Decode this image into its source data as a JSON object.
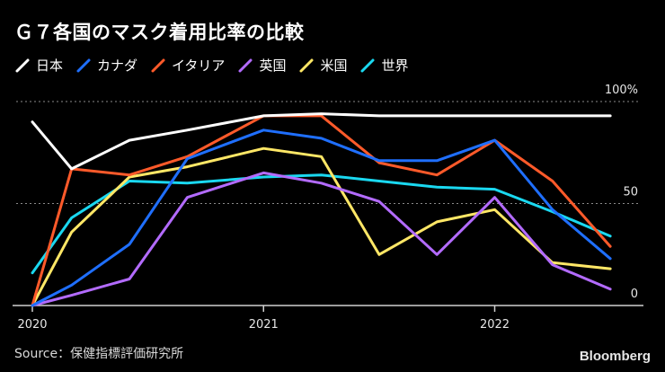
{
  "title": "Ｇ７各国のマスク着用比率の比較",
  "source": "Source：保健指標評価研究所",
  "brand": "Bloomberg",
  "chart_data": {
    "type": "line",
    "title": "Ｇ７各国のマスク着用比率の比較",
    "xlabel": "",
    "ylabel": "",
    "xlim": [
      2020.0,
      2022.62
    ],
    "ylim": [
      0,
      100
    ],
    "yticks": [
      {
        "value": 100,
        "label": "100%"
      },
      {
        "value": 50,
        "label": "50"
      },
      {
        "value": 0,
        "label": "0"
      }
    ],
    "xticks": [
      {
        "value": 2020,
        "label": "2020"
      },
      {
        "value": 2021,
        "label": "2021"
      },
      {
        "value": 2022,
        "label": "2022"
      }
    ],
    "x": [
      2020.0,
      2020.17,
      2020.42,
      2020.67,
      2021.0,
      2021.25,
      2021.5,
      2021.75,
      2022.0,
      2022.25,
      2022.5
    ],
    "series": [
      {
        "name": "日本",
        "color": "#ffffff",
        "values": [
          90,
          67,
          81,
          86,
          93,
          94,
          93,
          93,
          93,
          93,
          93
        ]
      },
      {
        "name": "カナダ",
        "color": "#1f6fff",
        "values": [
          0,
          10,
          30,
          72,
          86,
          82,
          71,
          71,
          81,
          47,
          23
        ]
      },
      {
        "name": "イタリア",
        "color": "#ff5a2a",
        "values": [
          0,
          67,
          64,
          73,
          93,
          93,
          70,
          64,
          81,
          61,
          29
        ]
      },
      {
        "name": "英国",
        "color": "#b36bff",
        "values": [
          0,
          5,
          13,
          53,
          65,
          60,
          51,
          25,
          53,
          20,
          8
        ]
      },
      {
        "name": "米国",
        "color": "#ffe766",
        "values": [
          0,
          36,
          63,
          68,
          77,
          73,
          25,
          41,
          47,
          21,
          18
        ]
      },
      {
        "name": "世界",
        "color": "#1ad8f0",
        "values": [
          16,
          43,
          61,
          60,
          63,
          64,
          61,
          58,
          57,
          46,
          34
        ]
      }
    ],
    "legend": "top-left"
  }
}
